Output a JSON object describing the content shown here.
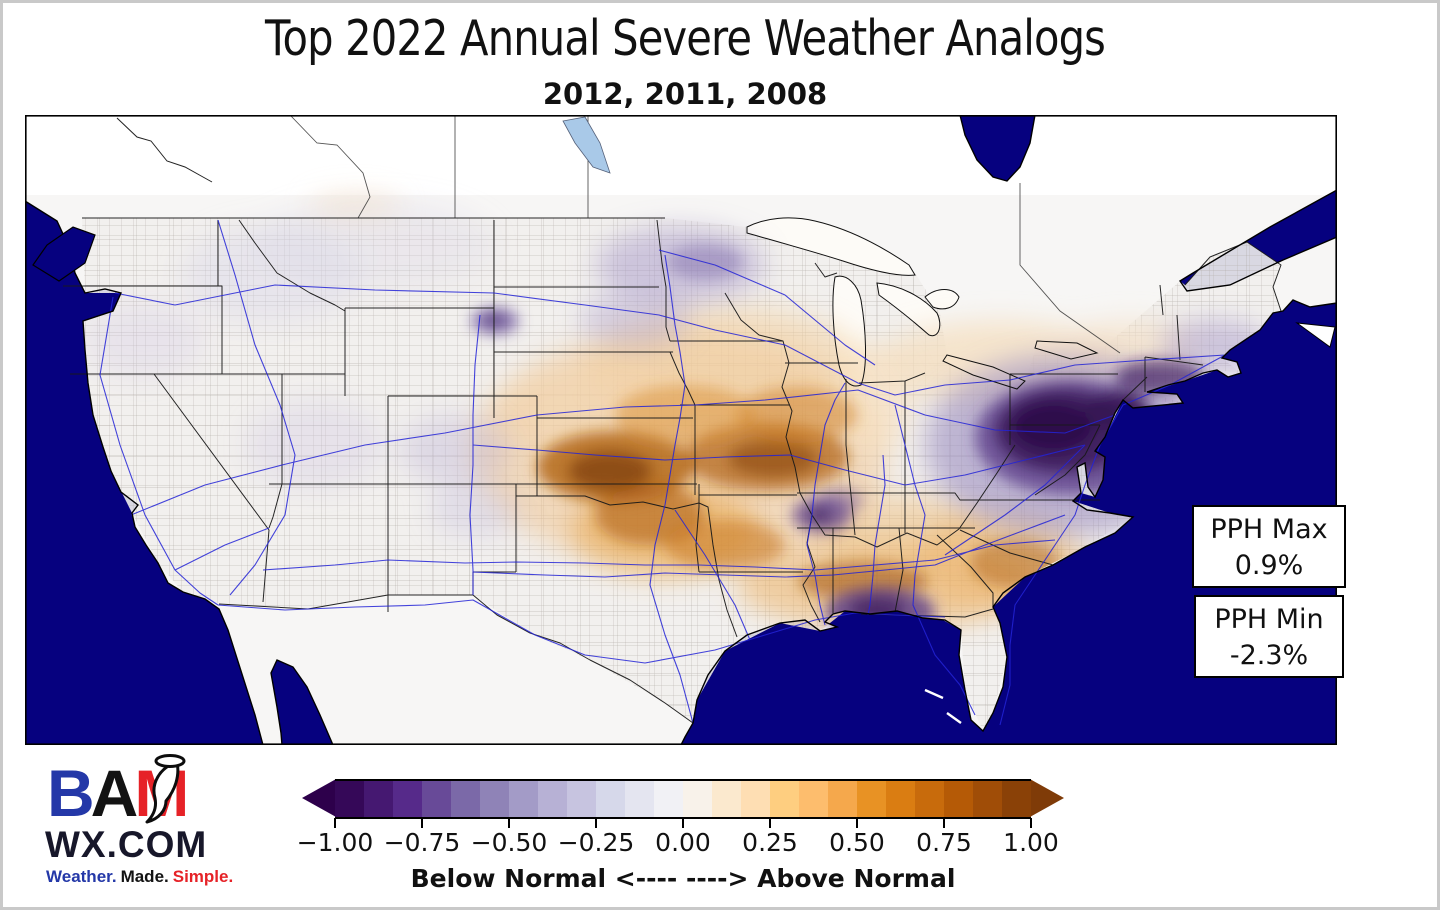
{
  "title": "Top 2022 Annual Severe Weather Analogs",
  "subtitle": "2012, 2011, 2008",
  "annotations": {
    "pph_max_label": "PPH Max",
    "pph_max_value": "0.9%",
    "pph_min_label": "PPH Min",
    "pph_min_value": "-2.3%"
  },
  "colorbar": {
    "range": [
      -1.0,
      1.0
    ],
    "ticks": [
      "−1.00",
      "−0.75",
      "−0.50",
      "−0.25",
      "0.00",
      "0.25",
      "0.50",
      "0.75",
      "1.00"
    ],
    "caption": "Below Normal <---- ----> Above Normal",
    "left_tip": "#2d004b",
    "right_tip": "#7f3b08",
    "segments": [
      "#350858",
      "#451871",
      "#562a8a",
      "#684a98",
      "#7b69a8",
      "#8f83b7",
      "#a39bc7",
      "#b7b1d5",
      "#c7c4e0",
      "#d6d8ea",
      "#e4e5f0",
      "#f1f1f5",
      "#f8f2ea",
      "#fbe9ce",
      "#fedeb3",
      "#fece80",
      "#fdbd6d",
      "#f5a84c",
      "#e89224",
      "#da7d12",
      "#c86b0c",
      "#b55a06",
      "#a04d07",
      "#8a4107"
    ]
  },
  "logo": {
    "letters": [
      {
        "t": "B",
        "c": "#2438a8"
      },
      {
        "t": "A",
        "c": "#131313"
      },
      {
        "t": "M",
        "c": "#e62227"
      }
    ],
    "domain": "WX.COM",
    "tagline": [
      {
        "t": "Weather.",
        "c": "#2438a8"
      },
      {
        "t": "Made.",
        "c": "#131313"
      },
      {
        "t": "Simple.",
        "c": "#e62227"
      }
    ]
  },
  "map": {
    "theme": {
      "ocean": "#06017f",
      "land": "#ffffff",
      "road": "#2424d6",
      "lake": "#a9c9e8",
      "county": "#b3aea8",
      "border": "#1a1a1a"
    },
    "anomaly_regions": [
      {
        "area": "Central Plains and Mid-Missouri Valley",
        "sign": "above-normal"
      },
      {
        "area": "Mid-South / Southeast",
        "sign": "above-normal"
      },
      {
        "area": "Northeast PA-NJ-NY-New England",
        "sign": "below-normal"
      },
      {
        "area": "South Georgia / SE Alabama",
        "sign": "below-normal"
      },
      {
        "area": "Middle Tennessee",
        "sign": "below-normal"
      },
      {
        "area": "Northeast Wyoming",
        "sign": "below-normal"
      }
    ]
  }
}
